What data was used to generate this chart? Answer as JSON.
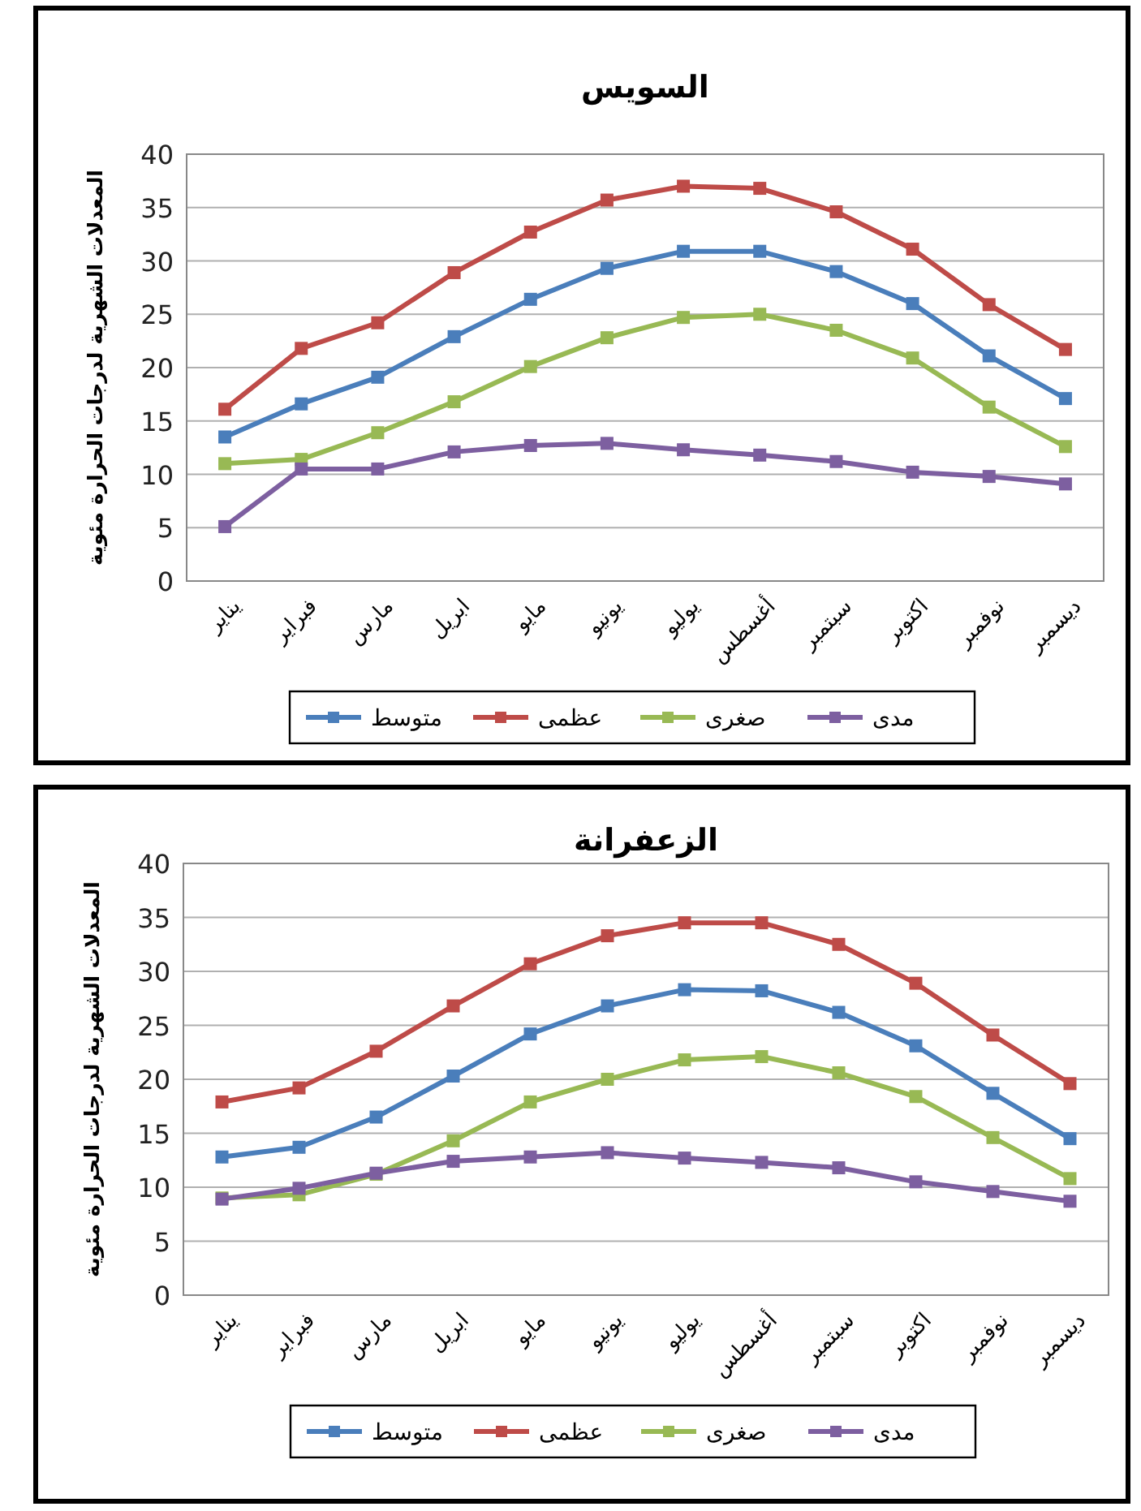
{
  "chart_data": [
    {
      "type": "line",
      "title": "السويس",
      "ylabel": "المعدلات الشهرية لدرجات الحرارة مئوية",
      "categories": [
        "يناير",
        "فبراير",
        "مارس",
        "ابريل",
        "مايو",
        "يونيو",
        "يوليو",
        "أغسطس",
        "سبتمبر",
        "اكتوبر",
        "نوفمبر",
        "ديسمبر"
      ],
      "series": [
        {
          "name": "متوسط",
          "color": "#4a7ebb",
          "values": [
            13.5,
            16.6,
            19.1,
            22.9,
            26.4,
            29.3,
            30.9,
            30.9,
            29.0,
            26.0,
            21.1,
            17.1
          ]
        },
        {
          "name": "عظمى",
          "color": "#be4b48",
          "values": [
            16.1,
            21.8,
            24.2,
            28.9,
            32.7,
            35.7,
            37.0,
            36.8,
            34.6,
            31.1,
            25.9,
            21.7
          ]
        },
        {
          "name": "صغرى",
          "color": "#98b954",
          "values": [
            11.0,
            11.4,
            13.9,
            16.8,
            20.1,
            22.8,
            24.7,
            25.0,
            23.5,
            20.9,
            16.3,
            12.6
          ]
        },
        {
          "name": "مدى",
          "color": "#7d5fa0",
          "values": [
            5.1,
            10.5,
            10.5,
            12.1,
            12.7,
            12.9,
            12.3,
            11.8,
            11.2,
            10.2,
            9.8,
            9.1
          ]
        }
      ],
      "ylim": [
        0,
        40
      ],
      "yticks": [
        0,
        5,
        10,
        15,
        20,
        25,
        30,
        35,
        40
      ],
      "grid": "y",
      "legend": "bottom",
      "marker": "square",
      "line_style": "solid"
    },
    {
      "type": "line",
      "title": "الزعفرانة",
      "ylabel": "المعدلات الشهرية لدرجات الحرارة مئوية",
      "categories": [
        "يناير",
        "فبراير",
        "مارس",
        "ابريل",
        "مايو",
        "يونيو",
        "يوليو",
        "أغسطس",
        "سبتمبر",
        "اكتوبر",
        "نوفمبر",
        "ديسمبر"
      ],
      "series": [
        {
          "name": "متوسط",
          "color": "#4a7ebb",
          "values": [
            12.8,
            13.7,
            16.5,
            20.3,
            24.2,
            26.8,
            28.3,
            28.2,
            26.2,
            23.1,
            18.7,
            14.5
          ]
        },
        {
          "name": "عظمى",
          "color": "#be4b48",
          "values": [
            17.9,
            19.2,
            22.6,
            26.8,
            30.7,
            33.3,
            34.5,
            34.5,
            32.5,
            28.9,
            24.1,
            19.6
          ]
        },
        {
          "name": "صغرى",
          "color": "#98b954",
          "values": [
            9.0,
            9.3,
            11.2,
            14.3,
            17.9,
            20.0,
            21.8,
            22.1,
            20.6,
            18.4,
            14.6,
            10.8
          ]
        },
        {
          "name": "مدى",
          "color": "#7d5fa0",
          "values": [
            8.9,
            9.9,
            11.3,
            12.4,
            12.8,
            13.2,
            12.7,
            12.3,
            11.8,
            10.5,
            9.6,
            8.7
          ]
        }
      ],
      "ylim": [
        0,
        40
      ],
      "yticks": [
        0,
        5,
        10,
        15,
        20,
        25,
        30,
        35,
        40
      ],
      "grid": "y",
      "legend": "bottom",
      "marker": "square",
      "line_style": "solid"
    }
  ]
}
